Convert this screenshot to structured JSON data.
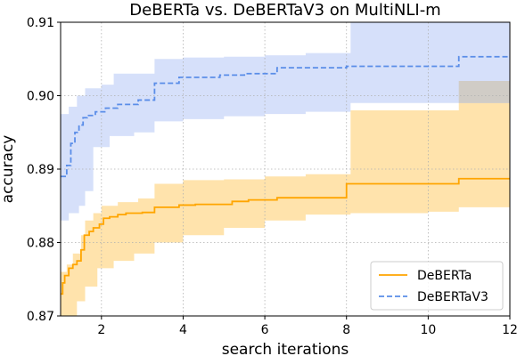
{
  "chart_data": {
    "type": "line",
    "title": "DeBERTa vs. DeBERTaV3 on MultiNLI-m",
    "xlabel": "search iterations",
    "ylabel": "accuracy",
    "xlim": [
      1,
      12
    ],
    "ylim": [
      0.87,
      0.91
    ],
    "xticks": [
      2,
      4,
      6,
      8,
      10,
      12
    ],
    "xtick_labels": [
      "2",
      "4",
      "6",
      "8",
      "10",
      "12"
    ],
    "yticks": [
      0.87,
      0.88,
      0.89,
      0.9,
      0.91
    ],
    "ytick_labels": [
      "0.87",
      "0.88",
      "0.89",
      "0.90",
      "0.91"
    ],
    "grid": true,
    "legend_position": "bottom-right",
    "series": [
      {
        "name": "DeBERTa",
        "color": "#ffa500",
        "band_color": "#ffd990",
        "line_style": "solid",
        "step": true,
        "x": [
          1.0,
          1.05,
          1.1,
          1.2,
          1.3,
          1.4,
          1.5,
          1.58,
          1.7,
          1.8,
          1.95,
          2.05,
          2.2,
          2.4,
          2.6,
          3.0,
          3.3,
          3.9,
          4.3,
          5.2,
          5.6,
          6.3,
          8.0,
          10.75,
          12.0
        ],
        "y": [
          0.873,
          0.8745,
          0.8755,
          0.8765,
          0.877,
          0.8775,
          0.879,
          0.881,
          0.8815,
          0.882,
          0.8825,
          0.8833,
          0.8835,
          0.8838,
          0.884,
          0.8841,
          0.8848,
          0.8851,
          0.8852,
          0.8856,
          0.8858,
          0.8861,
          0.888,
          0.8887,
          0.8887
        ],
        "upper": [
          {
            "x": 1.0,
            "y": 0.876
          },
          {
            "x": 1.15,
            "y": 0.877
          },
          {
            "x": 1.3,
            "y": 0.8785
          },
          {
            "x": 1.5,
            "y": 0.881
          },
          {
            "x": 1.6,
            "y": 0.883
          },
          {
            "x": 1.8,
            "y": 0.884
          },
          {
            "x": 2.0,
            "y": 0.885
          },
          {
            "x": 2.4,
            "y": 0.8855
          },
          {
            "x": 2.9,
            "y": 0.886
          },
          {
            "x": 3.3,
            "y": 0.888
          },
          {
            "x": 4.0,
            "y": 0.8885
          },
          {
            "x": 5.0,
            "y": 0.8886
          },
          {
            "x": 6.0,
            "y": 0.889
          },
          {
            "x": 7.0,
            "y": 0.8893
          },
          {
            "x": 8.1,
            "y": 0.898
          },
          {
            "x": 10.75,
            "y": 0.902
          },
          {
            "x": 12.0,
            "y": 0.902
          }
        ],
        "lower": [
          {
            "x": 1.0,
            "y": 0.869
          },
          {
            "x": 1.2,
            "y": 0.87
          },
          {
            "x": 1.4,
            "y": 0.872
          },
          {
            "x": 1.6,
            "y": 0.874
          },
          {
            "x": 1.9,
            "y": 0.8765
          },
          {
            "x": 2.3,
            "y": 0.8775
          },
          {
            "x": 2.8,
            "y": 0.8785
          },
          {
            "x": 3.3,
            "y": 0.88
          },
          {
            "x": 4.0,
            "y": 0.881
          },
          {
            "x": 5.0,
            "y": 0.882
          },
          {
            "x": 6.0,
            "y": 0.883
          },
          {
            "x": 7.0,
            "y": 0.8838
          },
          {
            "x": 8.1,
            "y": 0.884
          },
          {
            "x": 10.0,
            "y": 0.8842
          },
          {
            "x": 10.75,
            "y": 0.8848
          },
          {
            "x": 12.0,
            "y": 0.8848
          }
        ]
      },
      {
        "name": "DeBERTaV3",
        "color": "#5a8de8",
        "band_color": "#c8d5f8",
        "line_style": "dashed",
        "step": true,
        "x": [
          1.0,
          1.15,
          1.25,
          1.35,
          1.45,
          1.55,
          1.65,
          1.85,
          2.1,
          2.4,
          2.9,
          3.3,
          3.9,
          4.9,
          5.5,
          6.3,
          8.0,
          10.75,
          12.0
        ],
        "y": [
          0.889,
          0.8905,
          0.8935,
          0.895,
          0.896,
          0.897,
          0.8973,
          0.8978,
          0.8983,
          0.8988,
          0.8994,
          0.9017,
          0.9025,
          0.9028,
          0.903,
          0.9038,
          0.904,
          0.9053,
          0.9053
        ],
        "upper": [
          {
            "x": 1.0,
            "y": 0.8975
          },
          {
            "x": 1.2,
            "y": 0.8985
          },
          {
            "x": 1.4,
            "y": 0.9
          },
          {
            "x": 1.6,
            "y": 0.901
          },
          {
            "x": 2.0,
            "y": 0.9015
          },
          {
            "x": 2.3,
            "y": 0.903
          },
          {
            "x": 3.3,
            "y": 0.905
          },
          {
            "x": 4.0,
            "y": 0.9052
          },
          {
            "x": 5.0,
            "y": 0.9053
          },
          {
            "x": 6.0,
            "y": 0.9055
          },
          {
            "x": 7.0,
            "y": 0.9058
          },
          {
            "x": 8.1,
            "y": 0.91
          },
          {
            "x": 12.0,
            "y": 0.91
          }
        ],
        "lower": [
          {
            "x": 1.0,
            "y": 0.883
          },
          {
            "x": 1.2,
            "y": 0.884
          },
          {
            "x": 1.45,
            "y": 0.885
          },
          {
            "x": 1.6,
            "y": 0.887
          },
          {
            "x": 1.8,
            "y": 0.893
          },
          {
            "x": 2.2,
            "y": 0.8945
          },
          {
            "x": 2.8,
            "y": 0.895
          },
          {
            "x": 3.3,
            "y": 0.8965
          },
          {
            "x": 4.0,
            "y": 0.8968
          },
          {
            "x": 5.0,
            "y": 0.8972
          },
          {
            "x": 6.0,
            "y": 0.8975
          },
          {
            "x": 7.0,
            "y": 0.8978
          },
          {
            "x": 8.1,
            "y": 0.899
          },
          {
            "x": 12.0,
            "y": 0.899
          }
        ]
      }
    ],
    "overlap_band_color": "#d0ccc6"
  }
}
